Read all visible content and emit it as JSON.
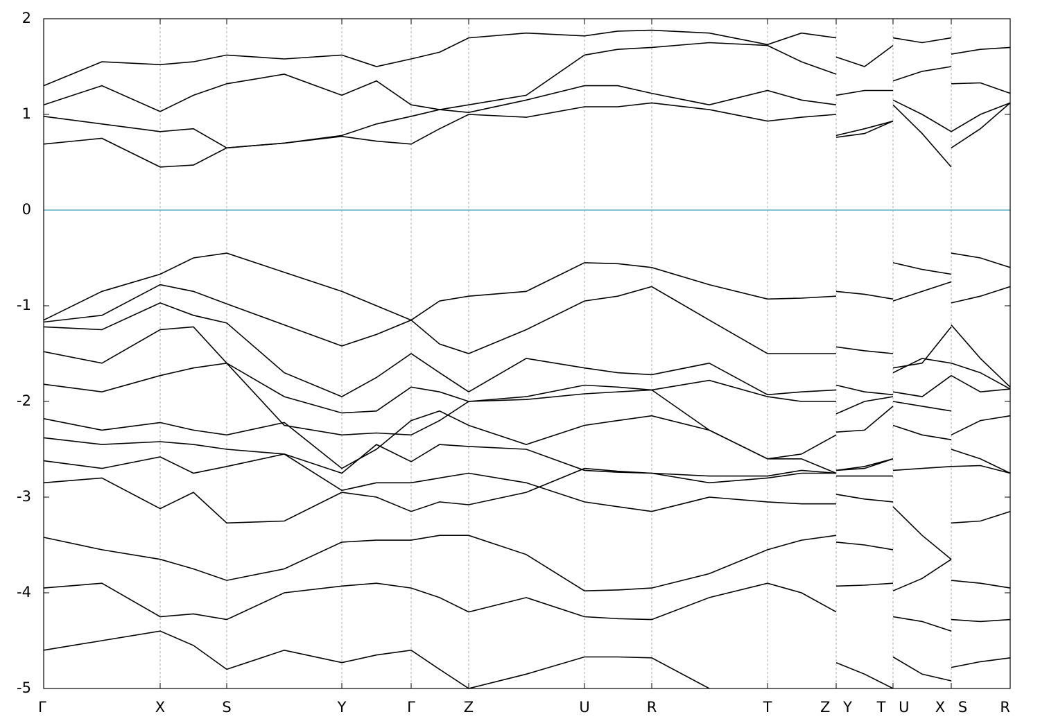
{
  "chart_data": {
    "type": "line",
    "color": "#000000",
    "hline": 0,
    "hline_color": "#5aaec4",
    "grid": true,
    "xlim": [
      0,
      13.94
    ],
    "ylim": [
      -5,
      2
    ],
    "yticks": [
      -5,
      -4,
      -3,
      -2,
      -1,
      0,
      1,
      2
    ],
    "xticks": [
      {
        "value": 0,
        "label": "Γ"
      },
      {
        "value": 1.68,
        "label": "X"
      },
      {
        "value": 2.64,
        "label": "S"
      },
      {
        "value": 4.3,
        "label": "Y"
      },
      {
        "value": 5.3,
        "label": "Γ"
      },
      {
        "value": 6.13,
        "label": "Z"
      },
      {
        "value": 7.8,
        "label": "U"
      },
      {
        "value": 8.77,
        "label": "R"
      },
      {
        "value": 10.44,
        "label": "T"
      },
      {
        "value": 11.43,
        "label": "Z Y"
      },
      {
        "value": 12.25,
        "label": "T U"
      },
      {
        "value": 13.09,
        "label": "X S"
      },
      {
        "value": 13.94,
        "label": "R"
      }
    ],
    "x": [
      0,
      0.84,
      1.68,
      2.16,
      2.64,
      3.47,
      4.3,
      4.8,
      5.3,
      5.71,
      6.13,
      6.96,
      7.8,
      8.28,
      8.77,
      9.6,
      10.44,
      10.93,
      11.43,
      11.43,
      11.43,
      11.84,
      12.25,
      12.25,
      12.25,
      12.67,
      13.09,
      13.09,
      13.09,
      13.51,
      13.94
    ],
    "series": [
      {
        "values": [
          0.69,
          0.75,
          0.45,
          0.47,
          0.65,
          0.7,
          0.77,
          0.72,
          0.69,
          0.85,
          1.0,
          0.97,
          1.08,
          1.08,
          1.12,
          1.05,
          0.93,
          0.97,
          1.0,
          null,
          0.76,
          0.8,
          0.93,
          null,
          1.1,
          0.8,
          0.45,
          null,
          0.65,
          0.85,
          1.12
        ]
      },
      {
        "values": [
          0.98,
          0.9,
          0.82,
          0.85,
          0.65,
          0.7,
          0.78,
          0.9,
          0.98,
          1.05,
          1.02,
          1.15,
          1.3,
          1.3,
          1.22,
          1.1,
          1.25,
          1.15,
          1.1,
          null,
          0.78,
          0.85,
          0.93,
          null,
          1.15,
          1.0,
          0.82,
          null,
          0.82,
          1.0,
          1.12
        ]
      },
      {
        "values": [
          1.1,
          1.3,
          1.03,
          1.2,
          1.32,
          1.42,
          1.2,
          1.35,
          1.1,
          1.05,
          1.1,
          1.2,
          1.62,
          1.68,
          1.7,
          1.75,
          1.72,
          1.55,
          1.42,
          null,
          1.2,
          1.25,
          1.25,
          null,
          1.35,
          1.45,
          1.5,
          null,
          1.32,
          1.33,
          1.22
        ]
      },
      {
        "values": [
          1.3,
          1.55,
          1.52,
          1.55,
          1.62,
          1.58,
          1.62,
          1.5,
          1.58,
          1.65,
          1.8,
          1.85,
          1.82,
          1.87,
          1.88,
          1.85,
          1.73,
          1.85,
          1.8,
          null,
          1.6,
          1.5,
          1.72,
          null,
          1.8,
          1.75,
          1.8,
          null,
          1.63,
          1.68,
          1.7
        ]
      },
      {
        "values": [
          -1.15,
          -0.85,
          -0.67,
          -0.5,
          -0.45,
          -0.65,
          -0.85,
          -1.0,
          -1.15,
          -0.95,
          -0.9,
          -0.85,
          -0.55,
          -0.56,
          -0.6,
          -0.78,
          -0.93,
          -0.92,
          -0.9,
          null,
          -0.85,
          -0.88,
          -0.93,
          null,
          -0.55,
          -0.62,
          -0.67,
          null,
          -0.45,
          -0.5,
          -0.6
        ]
      },
      {
        "values": [
          -1.17,
          -1.1,
          -0.78,
          -0.85,
          -0.98,
          -1.2,
          -1.42,
          -1.3,
          -1.15,
          -1.4,
          -1.5,
          -1.25,
          -0.95,
          -0.9,
          -0.8,
          -1.15,
          -1.5,
          -1.5,
          -1.5,
          null,
          -1.43,
          -1.47,
          -1.5,
          null,
          -0.95,
          -0.85,
          -0.75,
          null,
          -0.97,
          -0.9,
          -0.8
        ]
      },
      {
        "values": [
          -1.22,
          -1.25,
          -0.97,
          -1.1,
          -1.18,
          -1.7,
          -1.95,
          -1.75,
          -1.5,
          -1.7,
          -1.9,
          -1.55,
          -1.65,
          -1.7,
          -1.72,
          -1.6,
          -1.93,
          -1.9,
          -1.88,
          null,
          -1.83,
          -1.9,
          -1.93,
          null,
          -1.65,
          -1.6,
          -1.22,
          null,
          -1.2,
          -1.55,
          -1.85
        ]
      },
      {
        "values": [
          -1.48,
          -1.6,
          -1.25,
          -1.22,
          -1.6,
          -1.95,
          -2.12,
          -2.1,
          -1.85,
          -1.9,
          -2.0,
          -1.95,
          -1.83,
          -1.85,
          -1.88,
          -1.78,
          -1.95,
          -2.0,
          -2.0,
          null,
          -2.13,
          -2.0,
          -1.95,
          null,
          -1.7,
          -1.55,
          -1.6,
          null,
          -1.6,
          -1.7,
          -1.87
        ]
      },
      {
        "values": [
          -1.82,
          -1.9,
          -1.73,
          -1.65,
          -1.6,
          -2.25,
          -2.35,
          -2.33,
          -2.35,
          -2.2,
          -2.0,
          -1.98,
          -1.92,
          -1.9,
          -1.88,
          -2.3,
          -2.6,
          -2.55,
          -2.35,
          null,
          -2.32,
          -2.3,
          -2.05,
          null,
          -1.9,
          -1.95,
          -1.73,
          null,
          -1.73,
          -1.9,
          -1.87
        ]
      },
      {
        "values": [
          -2.18,
          -2.3,
          -2.22,
          -2.3,
          -2.35,
          -2.22,
          -2.7,
          -2.5,
          -2.2,
          -2.1,
          -2.25,
          -2.45,
          -2.25,
          -2.2,
          -2.15,
          -2.3,
          -2.6,
          -2.6,
          -2.75,
          null,
          -2.72,
          -2.68,
          -2.6,
          null,
          -2.0,
          -2.05,
          -2.1,
          null,
          -2.35,
          -2.2,
          -2.15
        ]
      },
      {
        "values": [
          -2.38,
          -2.45,
          -2.42,
          -2.45,
          -2.5,
          -2.55,
          -2.75,
          -2.45,
          -2.63,
          -2.45,
          -2.47,
          -2.5,
          -2.72,
          -2.74,
          -2.75,
          -2.78,
          -2.78,
          -2.72,
          -2.75,
          null,
          -2.78,
          -2.78,
          -2.78,
          null,
          -2.25,
          -2.35,
          -2.4,
          null,
          -2.5,
          -2.6,
          -2.75
        ]
      },
      {
        "values": [
          -2.62,
          -2.7,
          -2.58,
          -2.75,
          -2.68,
          -2.55,
          -2.93,
          -2.85,
          -2.85,
          -2.8,
          -2.75,
          -2.85,
          -3.05,
          -3.1,
          -3.15,
          -3.0,
          -3.05,
          -3.07,
          -3.07,
          null,
          -2.97,
          -3.02,
          -3.05,
          null,
          -2.72,
          -2.7,
          -2.68,
          null,
          -2.68,
          -2.67,
          -2.75
        ]
      },
      {
        "values": [
          -2.85,
          -2.8,
          -3.12,
          -2.95,
          -3.27,
          -3.25,
          -2.95,
          -3.0,
          -3.15,
          -3.05,
          -3.08,
          -2.95,
          -2.7,
          -2.73,
          -2.75,
          -2.85,
          -2.8,
          -2.75,
          -2.75,
          null,
          -2.72,
          -2.7,
          -2.6,
          null,
          -3.1,
          -3.4,
          -3.65,
          null,
          -3.27,
          -3.25,
          -3.15
        ]
      },
      {
        "values": [
          -3.42,
          -3.55,
          -3.65,
          -3.75,
          -3.87,
          -3.75,
          -3.47,
          -3.45,
          -3.45,
          -3.4,
          -3.4,
          -3.6,
          -3.98,
          -3.97,
          -3.95,
          -3.8,
          -3.55,
          -3.45,
          -3.4,
          null,
          -3.47,
          -3.5,
          -3.55,
          null,
          -3.98,
          -3.85,
          -3.65,
          null,
          -3.87,
          -3.9,
          -3.95
        ]
      },
      {
        "values": [
          -3.95,
          -3.9,
          -4.25,
          -4.22,
          -4.28,
          -4.0,
          -3.93,
          -3.9,
          -3.95,
          -4.05,
          -4.2,
          -4.05,
          -4.25,
          -4.27,
          -4.28,
          -4.05,
          -3.9,
          -4.0,
          -4.2,
          null,
          -3.93,
          -3.92,
          -3.9,
          null,
          -4.25,
          -4.3,
          -4.4,
          null,
          -4.28,
          -4.3,
          -4.28
        ]
      },
      {
        "values": [
          -4.6,
          -4.5,
          -4.4,
          -4.55,
          -4.8,
          -4.6,
          -4.73,
          -4.65,
          -4.6,
          -4.8,
          -5.0,
          -4.85,
          -4.67,
          -4.67,
          -4.68,
          -5.0,
          null,
          null,
          null,
          null,
          -4.73,
          -4.85,
          -5.0,
          null,
          -4.67,
          -4.85,
          -4.92,
          null,
          -4.78,
          -4.72,
          -4.68
        ]
      }
    ]
  }
}
